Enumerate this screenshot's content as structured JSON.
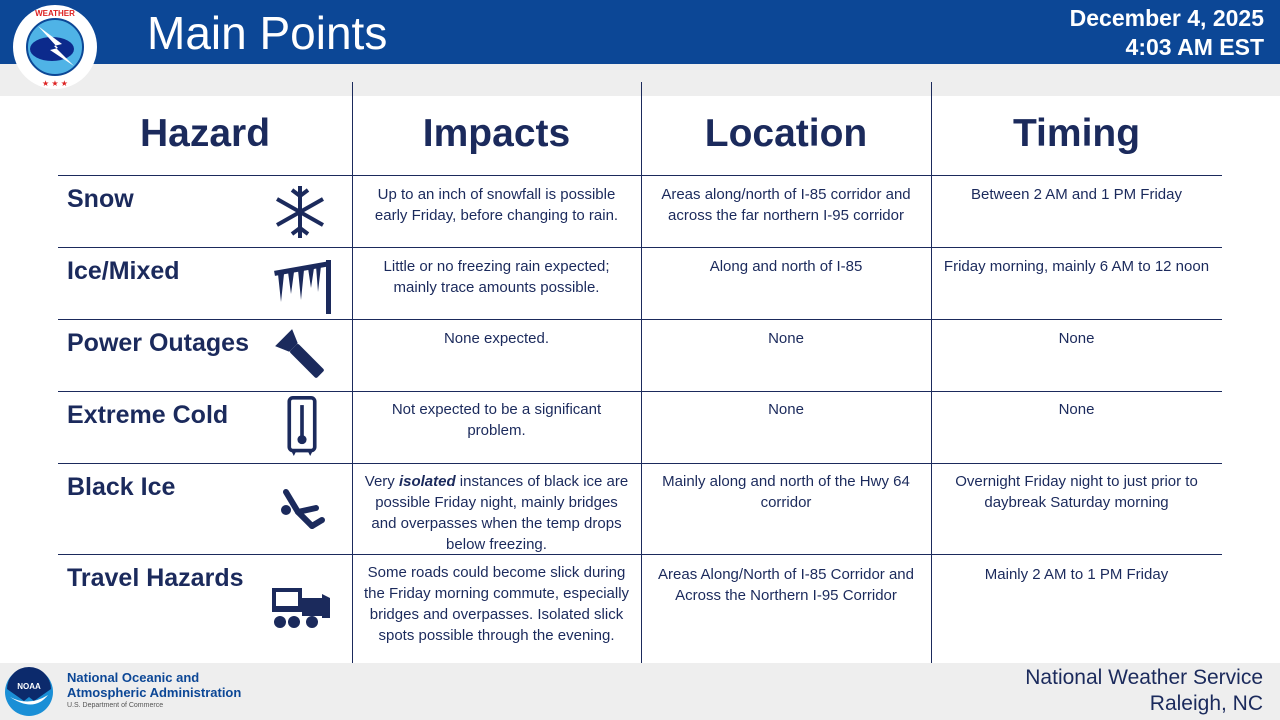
{
  "header": {
    "title": "Main Points",
    "date": "December 4, 2025",
    "time": "4:03 AM EST",
    "logo_text": "NATIONAL WEATHER SERVICE"
  },
  "table": {
    "columns": [
      "Hazard",
      "Impacts",
      "Location",
      "Timing"
    ],
    "rows": [
      {
        "hazard": "Snow",
        "icon": "snowflake-icon",
        "impacts": "Up to an inch of snowfall is possible early Friday, before changing to rain.",
        "location": "Areas along/north of I-85 corridor and across the far northern I-95 corridor",
        "timing": "Between 2 AM and 1 PM Friday"
      },
      {
        "hazard": "Ice/Mixed",
        "icon": "icicles-icon",
        "impacts": "Little or no freezing rain expected; mainly trace amounts possible.",
        "location": "Along and north of I-85",
        "timing": "Friday morning, mainly 6 AM to 12 noon"
      },
      {
        "hazard": "Power Outages",
        "icon": "flashlight-icon",
        "impacts": "None expected.",
        "location": "None",
        "timing": "None"
      },
      {
        "hazard": "Extreme Cold",
        "icon": "thermometer-icon",
        "impacts": "Not expected to be a significant problem.",
        "location": "None",
        "timing": "None"
      },
      {
        "hazard": "Black Ice",
        "icon": "slipping-person-icon",
        "impacts_pre": "Very ",
        "impacts_em": "isolated",
        "impacts_post": " instances of black ice are possible Friday night, mainly bridges and overpasses when the temp drops below freezing.",
        "location": "Mainly along and north of the Hwy 64 corridor",
        "timing": "Overnight Friday night to just prior to daybreak Saturday morning"
      },
      {
        "hazard": "Travel Hazards",
        "icon": "snowplow-truck-icon",
        "impacts": "Some roads could become slick during the Friday morning commute, especially bridges and overpasses. Isolated slick spots possible through the evening.",
        "location": "Areas Along/North of I-85 Corridor and Across the Northern I-95 Corridor",
        "timing": "Mainly 2 AM to 1 PM Friday"
      }
    ]
  },
  "footer": {
    "noaa_badge": "NOAA",
    "noaa_line1": "National Oceanic and",
    "noaa_line2": "Atmospheric Administration",
    "noaa_sub": "U.S. Department of Commerce",
    "office_line1": "National Weather Service",
    "office_line2": "Raleigh, NC"
  },
  "colors": {
    "header_blue": "#0c4796",
    "text_navy": "#1b2a5c"
  }
}
